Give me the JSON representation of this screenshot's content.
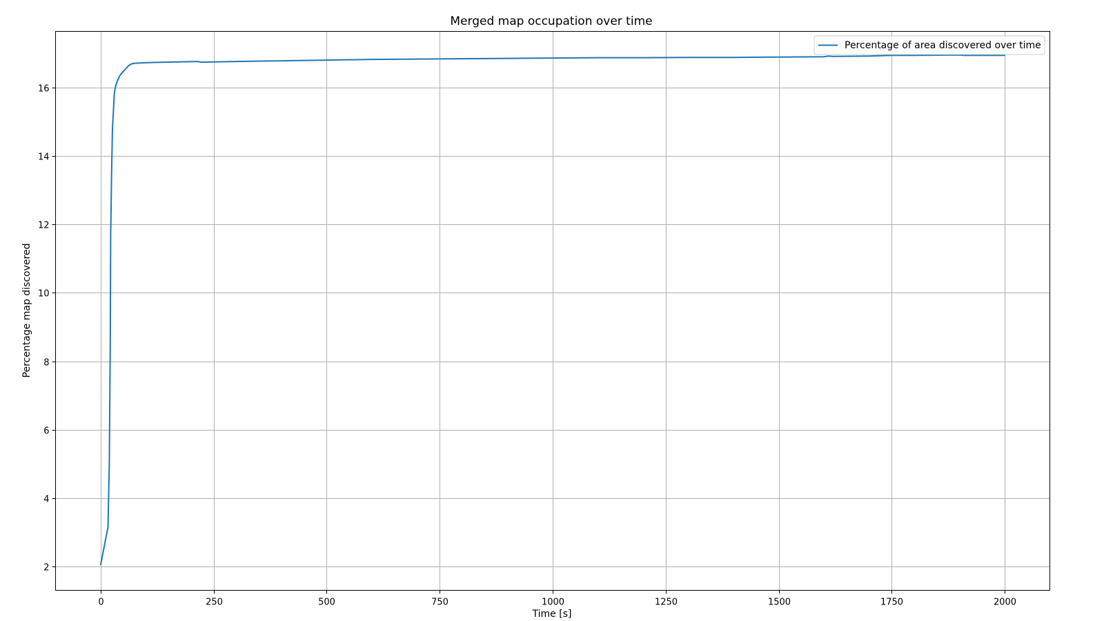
{
  "chart_data": {
    "type": "line",
    "title": "Merged map occupation over time",
    "xlabel": "Time [s]",
    "ylabel": "Percentage map discovered",
    "xlim": [
      -100,
      2100
    ],
    "ylim": [
      1.3,
      17.65
    ],
    "xticks": [
      0,
      250,
      500,
      750,
      1000,
      1250,
      1500,
      1750,
      2000
    ],
    "yticks": [
      2,
      4,
      6,
      8,
      10,
      12,
      14,
      16
    ],
    "grid": true,
    "legend_position": "top-right",
    "series": [
      {
        "name": "Percentage of area discovered over time",
        "color": "#1f77b4",
        "x": [
          0,
          8,
          16,
          19,
          21,
          22,
          23,
          24,
          26,
          28,
          30,
          32,
          34,
          37,
          42,
          48,
          55,
          62,
          68,
          75,
          110,
          180,
          215,
          222,
          300,
          400,
          500,
          600,
          700,
          800,
          900,
          1000,
          1100,
          1200,
          1300,
          1400,
          1480,
          1500,
          1600,
          1610,
          1620,
          1700,
          1750,
          1800,
          1900,
          1910,
          2000
        ],
        "y": [
          2.05,
          2.6,
          3.15,
          5.0,
          8.5,
          11.7,
          12.6,
          13.5,
          14.8,
          15.3,
          15.8,
          16.0,
          16.1,
          16.2,
          16.35,
          16.45,
          16.55,
          16.65,
          16.7,
          16.72,
          16.74,
          16.76,
          16.77,
          16.75,
          16.77,
          16.79,
          16.81,
          16.83,
          16.84,
          16.85,
          16.86,
          16.87,
          16.88,
          16.88,
          16.89,
          16.89,
          16.9,
          16.9,
          16.91,
          16.93,
          16.92,
          16.93,
          16.95,
          16.95,
          16.96,
          16.95,
          16.95
        ]
      }
    ]
  }
}
